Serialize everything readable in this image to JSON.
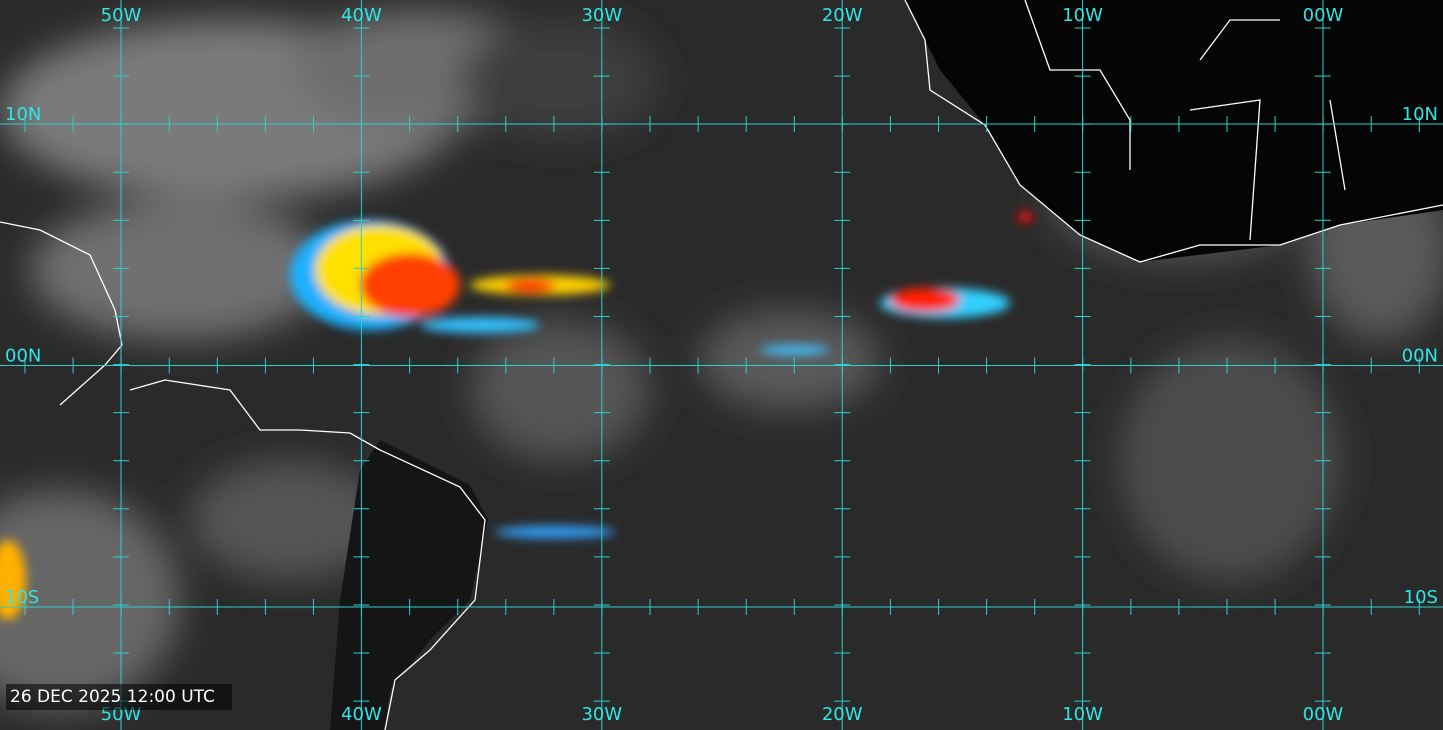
{
  "map": {
    "longitude_labels": [
      "50W",
      "40W",
      "30W",
      "20W",
      "10W",
      "00W"
    ],
    "latitude_labels": [
      "10N",
      "00N",
      "10S"
    ],
    "timestamp": "26 DEC 2025 12:00 UTC"
  }
}
